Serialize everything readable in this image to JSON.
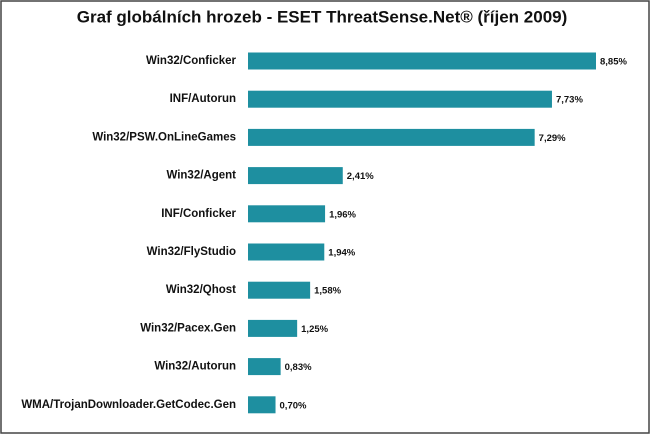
{
  "chart_data": {
    "type": "barh",
    "title": "Graf globálních hrozeb - ESET ThreatSense.Net® (říjen 2009)",
    "categories": [
      "Win32/Conficker",
      "INF/Autorun",
      "Win32/PSW.OnLineGames",
      "Win32/Agent",
      "INF/Conficker",
      "Win32/FlyStudio",
      "Win32/Qhost",
      "Win32/Pacex.Gen",
      "Win32/Autorun",
      "WMA/TrojanDownloader.GetCodec.Gen"
    ],
    "values": [
      8.85,
      7.73,
      7.29,
      2.41,
      1.96,
      1.94,
      1.58,
      1.25,
      0.83,
      0.7
    ],
    "value_labels": [
      "8,85%",
      "7,73%",
      "7,29%",
      "2,41%",
      "1,96%",
      "1,94%",
      "1,58%",
      "1,25%",
      "0,83%",
      "0,70%"
    ],
    "color": "#1e8fa0"
  }
}
